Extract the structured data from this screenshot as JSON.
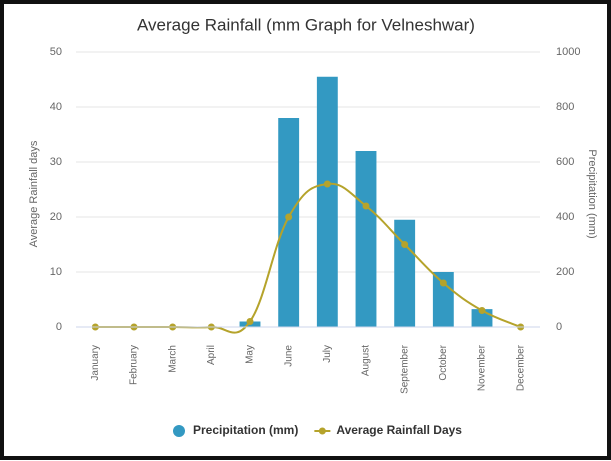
{
  "chart_data": {
    "type": "combo",
    "title": "Average Rainfall (mm Graph for Velneshwar)",
    "y_label": "Average Rainfall days",
    "y2_label": "Precipitation (mm)",
    "categories": [
      "January",
      "February",
      "March",
      "April",
      "May",
      "June",
      "July",
      "August",
      "September",
      "October",
      "November",
      "December"
    ],
    "series": [
      {
        "name": "Precipitation (mm)",
        "type": "bar",
        "axis": "y2",
        "color": "#3399c2",
        "values": [
          0,
          0,
          0,
          0,
          20,
          760,
          910,
          640,
          390,
          200,
          65,
          0
        ]
      },
      {
        "name": "Average Rainfall Days",
        "type": "line",
        "color": "#b5a32b",
        "values": [
          0,
          0,
          0,
          0,
          1,
          20,
          26,
          22,
          15,
          8,
          3,
          0
        ]
      }
    ],
    "ylim": [
      0,
      50
    ],
    "yticks": [
      0,
      10,
      20,
      30,
      40,
      50
    ],
    "y2lim": [
      0,
      1000
    ],
    "y2ticks": [
      0,
      200,
      400,
      600,
      800,
      1000
    ],
    "grid": true,
    "legend": "bottom"
  }
}
